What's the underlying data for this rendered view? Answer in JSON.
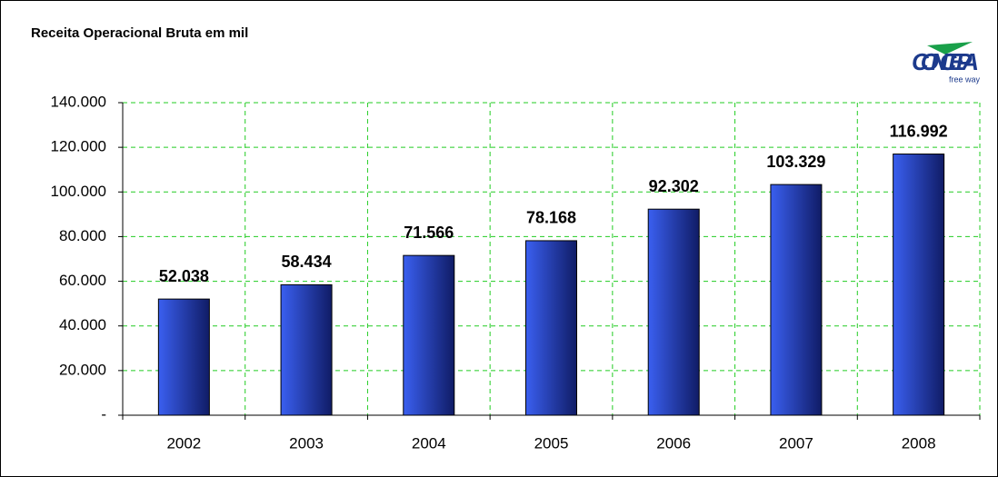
{
  "chart_data": {
    "type": "bar",
    "title": "Receita Operacional Bruta em mil",
    "logo": "CONCEPA",
    "logo_tagline": "free way",
    "categories": [
      "2002",
      "2003",
      "2004",
      "2005",
      "2006",
      "2007",
      "2008"
    ],
    "values": [
      52038,
      58434,
      71566,
      78168,
      92302,
      103329,
      116992
    ],
    "value_labels": [
      "52.038",
      "58.434",
      "71.566",
      "78.168",
      "92.302",
      "103.329",
      "116.992"
    ],
    "color": "#3a5ff0",
    "grid_color": "#22cc22",
    "ylim": [
      0,
      140000
    ],
    "yticks": [
      {
        "value": 0,
        "label": "-"
      },
      {
        "value": 20000,
        "label": "20.000"
      },
      {
        "value": 40000,
        "label": "40.000"
      },
      {
        "value": 60000,
        "label": "60.000"
      },
      {
        "value": 80000,
        "label": "80.000"
      },
      {
        "value": 100000,
        "label": "100.000"
      },
      {
        "value": 120000,
        "label": "120.000"
      },
      {
        "value": 140000,
        "label": "140.000"
      }
    ],
    "grid": true
  }
}
